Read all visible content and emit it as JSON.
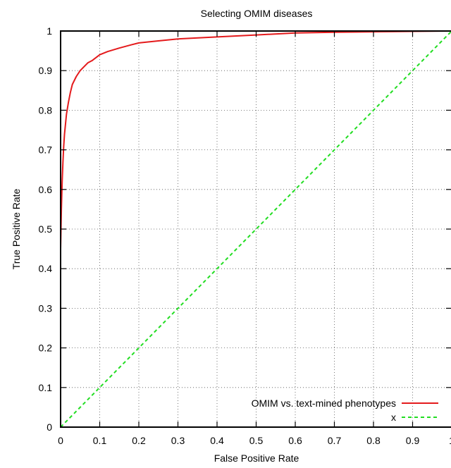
{
  "chart_data": {
    "type": "line",
    "title": "Selecting OMIM diseases",
    "xlabel": "False Positive Rate",
    "ylabel": "True Positive Rate",
    "xlim": [
      0,
      1
    ],
    "ylim": [
      0,
      1
    ],
    "x_ticks": [
      "0",
      "0.1",
      "0.2",
      "0.3",
      "0.4",
      "0.5",
      "0.6",
      "0.7",
      "0.8",
      "0.9",
      "1"
    ],
    "y_ticks": [
      "0",
      "0.1",
      "0.2",
      "0.3",
      "0.4",
      "0.5",
      "0.6",
      "0.7",
      "0.8",
      "0.9",
      "1"
    ],
    "grid": true,
    "legend_position": "bottom-right",
    "series": [
      {
        "name": "OMIM vs. text-mined phenotypes",
        "color": "#e41a1c",
        "style": "solid",
        "x": [
          0,
          0,
          0.002,
          0.004,
          0.006,
          0.008,
          0.01,
          0.015,
          0.02,
          0.025,
          0.03,
          0.04,
          0.05,
          0.06,
          0.07,
          0.08,
          0.1,
          0.12,
          0.15,
          0.18,
          0.2,
          0.25,
          0.3,
          0.4,
          0.5,
          0.6,
          0.7,
          0.8,
          0.9,
          1.0
        ],
        "y": [
          0,
          0.45,
          0.55,
          0.62,
          0.67,
          0.71,
          0.74,
          0.79,
          0.82,
          0.845,
          0.865,
          0.885,
          0.9,
          0.91,
          0.92,
          0.925,
          0.94,
          0.948,
          0.957,
          0.965,
          0.97,
          0.975,
          0.98,
          0.985,
          0.99,
          0.995,
          0.997,
          0.998,
          0.999,
          1.0
        ]
      },
      {
        "name": "x",
        "color": "#22dd22",
        "style": "dashed",
        "x": [
          0,
          1
        ],
        "y": [
          0,
          1
        ]
      }
    ]
  }
}
